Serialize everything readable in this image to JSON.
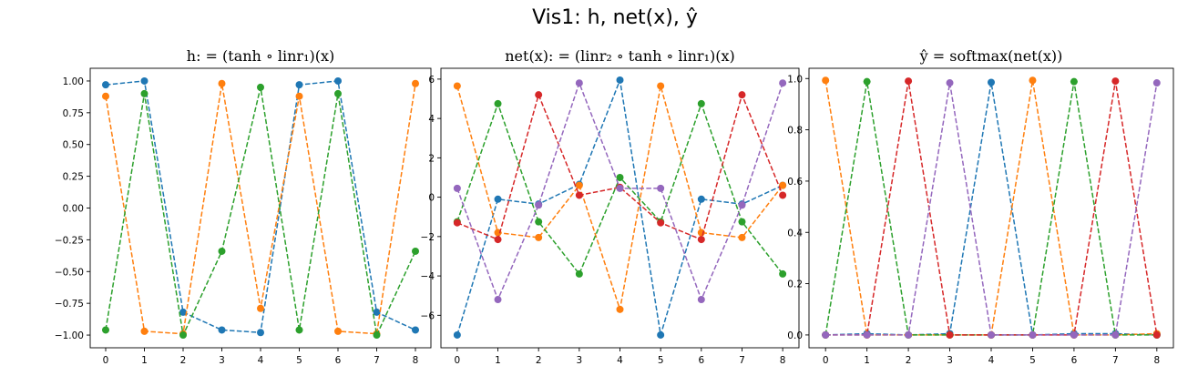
{
  "figure": {
    "suptitle": "Vis1: h, net(x), ŷ"
  },
  "colors": {
    "series": [
      "#1f77b4",
      "#ff7f0e",
      "#2ca02c",
      "#d62728",
      "#9467bd"
    ]
  },
  "chart_data": [
    {
      "type": "line",
      "title": "h: = (tanh ∘ linr₁)(x)",
      "x": [
        0,
        1,
        2,
        3,
        4,
        5,
        6,
        7,
        8
      ],
      "xticks": [
        "0",
        "1",
        "2",
        "3",
        "4",
        "5",
        "6",
        "7",
        "8"
      ],
      "xlim": [
        -0.4,
        8.4
      ],
      "ylim": [
        -1.1,
        1.1
      ],
      "yticks": [
        -1.0,
        -0.75,
        -0.5,
        -0.25,
        0.0,
        0.25,
        0.5,
        0.75,
        1.0
      ],
      "ytick_labels": [
        "−1.00",
        "−0.75",
        "−0.50",
        "−0.25",
        "0.00",
        "0.25",
        "0.50",
        "0.75",
        "1.00"
      ],
      "line_style": "dashed",
      "marker": "circle",
      "series": [
        {
          "color": "#1f77b4",
          "values": [
            0.97,
            1.0,
            -0.82,
            -0.96,
            -0.98,
            0.97,
            1.0,
            -0.82,
            -0.96
          ]
        },
        {
          "color": "#ff7f0e",
          "values": [
            0.88,
            -0.97,
            -0.99,
            0.98,
            -0.79,
            0.88,
            -0.97,
            -0.99,
            0.98
          ]
        },
        {
          "color": "#2ca02c",
          "values": [
            -0.96,
            0.9,
            -1.0,
            -0.34,
            0.95,
            -0.96,
            0.9,
            -1.0,
            -0.34
          ]
        }
      ]
    },
    {
      "type": "line",
      "title": "net(x): = (linr₂ ∘ tanh ∘ linr₁)(x)",
      "x": [
        0,
        1,
        2,
        3,
        4,
        5,
        6,
        7,
        8
      ],
      "xticks": [
        "0",
        "1",
        "2",
        "3",
        "4",
        "5",
        "6",
        "7",
        "8"
      ],
      "xlim": [
        -0.4,
        8.4
      ],
      "ylim": [
        -7.65,
        6.55
      ],
      "yticks": [
        -6,
        -4,
        -2,
        0,
        2,
        4,
        6
      ],
      "ytick_labels": [
        "−6",
        "−4",
        "−2",
        "0",
        "2",
        "4",
        "6"
      ],
      "line_style": "dashed",
      "marker": "circle",
      "series": [
        {
          "color": "#1f77b4",
          "values": [
            -7.0,
            -0.1,
            -0.35,
            0.65,
            5.95,
            -7.0,
            -0.1,
            -0.35,
            0.6
          ]
        },
        {
          "color": "#ff7f0e",
          "values": [
            5.65,
            -1.8,
            -2.05,
            0.6,
            -5.7,
            5.65,
            -1.8,
            -2.05,
            0.6
          ]
        },
        {
          "color": "#2ca02c",
          "values": [
            -1.25,
            4.75,
            -1.25,
            -3.9,
            1.0,
            -1.25,
            4.75,
            -1.25,
            -3.9
          ]
        },
        {
          "color": "#d62728",
          "values": [
            -1.3,
            -2.15,
            5.2,
            0.1,
            0.5,
            -1.3,
            -2.15,
            5.2,
            0.1
          ]
        },
        {
          "color": "#9467bd",
          "values": [
            0.45,
            -5.2,
            -0.4,
            5.8,
            0.45,
            0.45,
            -5.2,
            -0.4,
            5.8
          ]
        }
      ]
    },
    {
      "type": "line",
      "title": "ŷ = softmax(net(x))",
      "x": [
        0,
        1,
        2,
        3,
        4,
        5,
        6,
        7,
        8
      ],
      "xticks": [
        "0",
        "1",
        "2",
        "3",
        "4",
        "5",
        "6",
        "7",
        "8"
      ],
      "xlim": [
        -0.4,
        8.4
      ],
      "ylim": [
        -0.05,
        1.04
      ],
      "yticks": [
        0.0,
        0.2,
        0.4,
        0.6,
        0.8,
        1.0
      ],
      "ytick_labels": [
        "0.0",
        "0.2",
        "0.4",
        "0.6",
        "0.8",
        "1.0"
      ],
      "line_style": "dashed",
      "marker": "circle",
      "series": [
        {
          "color": "#1f77b4",
          "values": [
            0.0,
            0.005,
            0.0,
            0.005,
            0.985,
            0.0,
            0.005,
            0.005,
            0.0
          ]
        },
        {
          "color": "#ff7f0e",
          "values": [
            0.993,
            0.0,
            0.0,
            0.0,
            0.0,
            0.993,
            0.0,
            0.0,
            0.005
          ]
        },
        {
          "color": "#2ca02c",
          "values": [
            0.0,
            0.988,
            0.0,
            0.0,
            0.0,
            0.0,
            0.988,
            0.0,
            0.0
          ]
        },
        {
          "color": "#d62728",
          "values": [
            0.0,
            0.0,
            0.99,
            0.0,
            0.0,
            0.0,
            0.0,
            0.99,
            0.0
          ]
        },
        {
          "color": "#9467bd",
          "values": [
            0.0,
            0.0,
            0.0,
            0.983,
            0.0,
            0.0,
            0.0,
            0.0,
            0.983
          ]
        }
      ]
    }
  ]
}
